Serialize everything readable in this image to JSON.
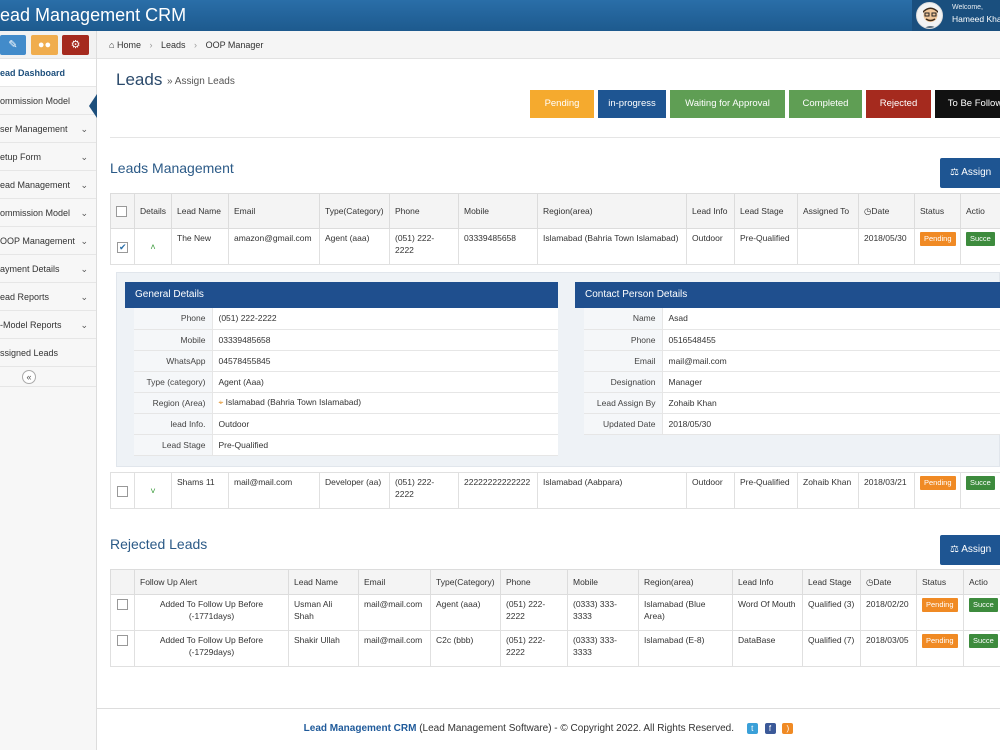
{
  "app": {
    "title": "ead Management CRM",
    "welcome": "Welcome,",
    "user": "Hameed Kha"
  },
  "sidebar": {
    "items": [
      {
        "label": "ead Dashboard",
        "active": true
      },
      {
        "label": "ommission Model"
      },
      {
        "label": "ser Management",
        "chevron": true
      },
      {
        "label": "etup Form",
        "chevron": true
      },
      {
        "label": "ead Management",
        "chevron": true
      },
      {
        "label": "ommission Model",
        "chevron": true
      },
      {
        "label": "OOP Management",
        "chevron": true
      },
      {
        "label": "ayment Details",
        "chevron": true
      },
      {
        "label": "ead Reports",
        "chevron": true
      },
      {
        "label": "-Model Reports",
        "chevron": true
      },
      {
        "label": "ssigned Leads"
      }
    ],
    "collapse": "«"
  },
  "breadcrumb": {
    "home": "Home",
    "leads": "Leads",
    "current": "OOP Manager"
  },
  "page": {
    "title": "Leads",
    "subtitle": "» Assign Leads"
  },
  "status_tabs": [
    {
      "label": "Pending",
      "color": "#f5a623"
    },
    {
      "label": "in-progress",
      "color": "#1e5592"
    },
    {
      "label": "Waiting for Approval",
      "color": "#5f9e54"
    },
    {
      "label": "Completed",
      "color": "#5f9e54"
    },
    {
      "label": "Rejected",
      "color": "#a52a1e"
    },
    {
      "label": "To Be Follow",
      "color": "#111111"
    }
  ],
  "leads_management": {
    "title": "Leads Management",
    "assign_label": "Assign",
    "columns": [
      "",
      "Details",
      "Lead Name",
      "Email",
      "Type(Category)",
      "Phone",
      "Mobile",
      "Region(area)",
      "Lead Info",
      "Lead Stage",
      "Assigned To",
      "Date",
      "Status",
      "Actio"
    ],
    "rows": [
      {
        "checked": true,
        "name": "The New",
        "email": "amazon@gmail.com",
        "type": "Agent (aaa)",
        "phone": "(051) 222-2222",
        "mobile": "03339485658",
        "region": "Islamabad (Bahria Town Islamabad)",
        "info": "Outdoor",
        "stage": "Pre-Qualified",
        "assigned": "",
        "date": "2018/05/30",
        "status": "Pending",
        "action": "Succe"
      },
      {
        "checked": false,
        "name": "Shams 11",
        "email": "mail@mail.com",
        "type": "Developer (aa)",
        "phone": "(051) 222-2222",
        "mobile": "22222222222222",
        "region": "Islamabad (Aabpara)",
        "info": "Outdoor",
        "stage": "Pre-Qualified",
        "assigned": "Zohaib Khan",
        "date": "2018/03/21",
        "status": "Pending",
        "action": "Succe"
      }
    ]
  },
  "general_details": {
    "title": "General Details",
    "rows": [
      {
        "k": "Phone",
        "v": "(051) 222-2222"
      },
      {
        "k": "Mobile",
        "v": "03339485658"
      },
      {
        "k": "WhatsApp",
        "v": "04578455845"
      },
      {
        "k": "Type (category)",
        "v": "Agent (Aaa)"
      },
      {
        "k": "Region (Area)",
        "v": "Islamabad (Bahria Town Islamabad)",
        "pin": true
      },
      {
        "k": "lead Info.",
        "v": "Outdoor"
      },
      {
        "k": "Lead Stage",
        "v": "Pre-Qualified"
      }
    ]
  },
  "contact_details": {
    "title": "Contact Person Details",
    "rows": [
      {
        "k": "Name",
        "v": "Asad"
      },
      {
        "k": "Phone",
        "v": "0516548455"
      },
      {
        "k": "Email",
        "v": "mail@mail.com"
      },
      {
        "k": "Designation",
        "v": "Manager"
      },
      {
        "k": "Lead Assign By",
        "v": "Zohaib Khan"
      },
      {
        "k": "Updated Date",
        "v": "2018/05/30"
      }
    ]
  },
  "rejected_leads": {
    "title": "Rejected Leads",
    "assign_label": "Assign",
    "columns": [
      "",
      "Follow Up Alert",
      "Lead Name",
      "Email",
      "Type(Category)",
      "Phone",
      "Mobile",
      "Region(area)",
      "Lead Info",
      "Lead Stage",
      "Date",
      "Status",
      "Actio"
    ],
    "rows": [
      {
        "alert": "Added To Follow Up Before (-1771days)",
        "name": "Usman Ali Shah",
        "email": "mail@mail.com",
        "type": "Agent (aaa)",
        "phone": "(051) 222-2222",
        "mobile": "(0333) 333-3333",
        "region": "Islamabad (Blue Area)",
        "info": "Word Of Mouth",
        "stage": "Qualified (3)",
        "date": "2018/02/20",
        "status": "Pending",
        "action": "Succe"
      },
      {
        "alert": "Added To Follow Up Before (-1729days)",
        "name": "Shakir Ullah",
        "email": "mail@mail.com",
        "type": "C2c (bbb)",
        "phone": "(051) 222-2222",
        "mobile": "(0333) 333-3333",
        "region": "Islamabad (E-8)",
        "info": "DataBase",
        "stage": "Qualified (7)",
        "date": "2018/03/05",
        "status": "Pending",
        "action": "Succe"
      }
    ]
  },
  "footer": {
    "brand": "Lead Management CRM",
    "text": " (Lead Management Software) - © Copyright 2022. All Rights Reserved."
  },
  "icons": [
    "home-icon",
    "pencil-icon",
    "users-icon",
    "cogs-icon",
    "flask-icon",
    "clock-icon",
    "twitter-icon",
    "facebook-icon",
    "rss-icon",
    "map-pin-icon"
  ]
}
